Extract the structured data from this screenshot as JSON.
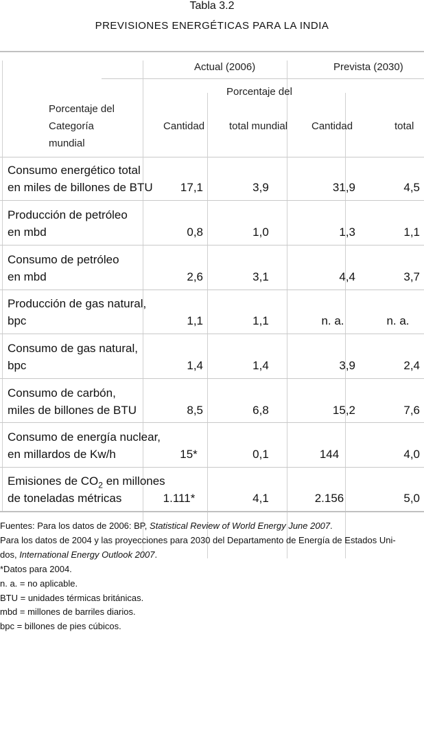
{
  "title": "Tabla 3.2",
  "subtitle": "PREVISIONES ENERGÉTICAS PARA LA INDIA",
  "header": {
    "group_actual": "Actual (2006)",
    "group_prevista": "Prevista (2030)",
    "pct_top": "Porcentaje del",
    "cat_line1": "Porcentaje del",
    "cat_line2": "Categoría",
    "cat_line3": "mundial",
    "col_cantidad_actual": "Cantidad",
    "col_total_mundial": "total mundial",
    "col_cantidad_prevista": "Cantidad",
    "col_total": "total"
  },
  "rows": [
    {
      "line1": "Consumo energético total",
      "line2": "en miles de billones de BTU",
      "a_cant": "17,1",
      "a_pct": "3,9",
      "p_cant": "31,9",
      "p_pct": "4,5"
    },
    {
      "line1": "Producción de petróleo",
      "line2": "en mbd",
      "a_cant": "0,8",
      "a_pct": "1,0",
      "p_cant": "1,3",
      "p_pct": "1,1"
    },
    {
      "line1": "Consumo de petróleo",
      "line2": "en mbd",
      "a_cant": "2,6",
      "a_pct": "3,1",
      "p_cant": "4,4",
      "p_pct": "3,7"
    },
    {
      "line1": "Producción de gas natural,",
      "line2": "bpc",
      "a_cant": "1,1",
      "a_pct": "1,1",
      "p_cant": "n. a.",
      "p_pct": "n. a."
    },
    {
      "line1": "Consumo de gas natural,",
      "line2": "bpc",
      "a_cant": "1,4",
      "a_pct": "1,4",
      "p_cant": "3,9",
      "p_pct": "2,4"
    },
    {
      "line1": "Consumo de carbón,",
      "line2": "miles de billones de BTU",
      "a_cant": "8,5",
      "a_pct": "6,8",
      "p_cant": "15,2",
      "p_pct": "7,6"
    },
    {
      "line1": "Consumo de energía nuclear,",
      "line2": "en millardos de Kw/h",
      "a_cant": "15*",
      "a_pct": "0,1",
      "p_cant": "144",
      "p_pct": "4,0"
    },
    {
      "line1_pre": "Emisiones de CO",
      "line1_sub": "2",
      "line1_post": " en millones",
      "line2": "de toneladas métricas",
      "a_cant": "1.111*",
      "a_pct": "4,1",
      "p_cant": "2.156",
      "p_pct": "5,0"
    }
  ],
  "footnotes": {
    "f1_pre": "Fuentes: Para los datos de 2006: BP, ",
    "f1_italic": "Statistical Review of World Energy June 2007",
    "f1_post": ".",
    "f2": "Para los datos de 2004 y las proyecciones para 2030 del Departamento de Energía de Estados Uni-",
    "f3_pre": "dos, ",
    "f3_italic": "International Energy Outlook 2007",
    "f3_post": ".",
    "f4": "*Datos para 2004.",
    "f5": "n. a. = no aplicable.",
    "f6": "BTU = unidades térmicas británicas.",
    "f7": "mbd = millones de barriles diarios.",
    "f8": "bpc = billones de pies cúbicos."
  }
}
